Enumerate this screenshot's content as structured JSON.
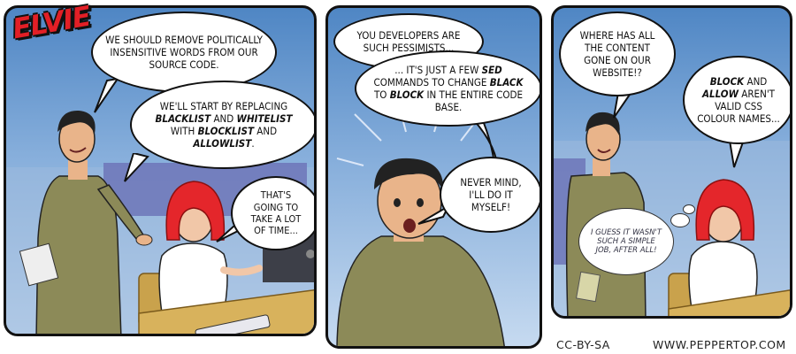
{
  "logo": {
    "text": "ELVIE"
  },
  "panel1": {
    "bubble1": "We should remove politically insensitive words from our source code.",
    "bubble2": {
      "p1": "We'll start by replacing ",
      "w1": "blacklist",
      "p2": " and ",
      "w2": "whitelist",
      "p3": " with ",
      "w3": "blocklist",
      "p4": " and ",
      "w4": "allowlist",
      "p5": "."
    },
    "bubble3": "That's going to take a lot of time..."
  },
  "panel2": {
    "bubble1": "You developers are such pessimists...",
    "bubble2": {
      "p1": "... it's just a few ",
      "w1": "sed",
      "p2": " commands to change ",
      "w2": "black",
      "p3": " to ",
      "w3": "block",
      "p4": " in the entire code base."
    },
    "bubble3": "Never mind, I'll do it myself!"
  },
  "panel3": {
    "bubble1": "Where has all the content gone on our website!?",
    "bubble2": {
      "w1": "Block",
      "p1": " and ",
      "w2": "Allow",
      "p2": " aren't valid CSS colour names..."
    },
    "thought": "I guess it wasn't such a simple job, after all!"
  },
  "footer": {
    "license": "CC-BY-SA",
    "website": "WWW.PEPPERTOP.COM"
  },
  "colors": {
    "sky_top": "#4f86c4",
    "sky_bottom": "#c6daf0",
    "logo_red": "#e21f26",
    "hair_red": "#e4262b",
    "shirt_olive": "#8c8a58",
    "desk": "#d8b25c"
  }
}
